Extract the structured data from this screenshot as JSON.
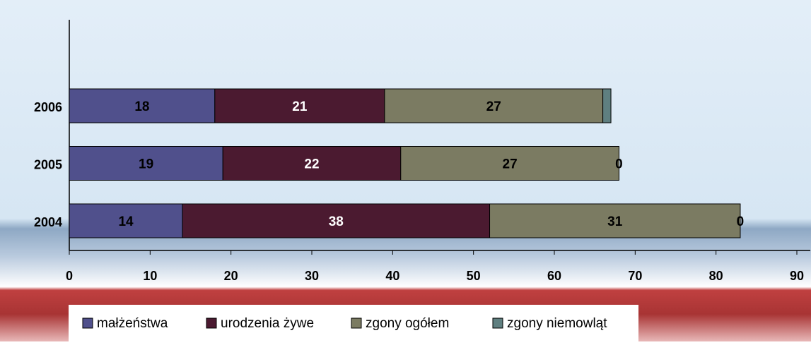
{
  "chart_data": {
    "type": "stacked_barh",
    "categories": [
      "2006",
      "2005",
      "2004"
    ],
    "series": [
      {
        "name": "małżeństwa",
        "color": "#50508c",
        "label_color": "#000000",
        "values": [
          18,
          19,
          14
        ]
      },
      {
        "name": "urodzenia żywe",
        "color": "#4b1a30",
        "label_color": "#ffffff",
        "values": [
          21,
          22,
          38
        ]
      },
      {
        "name": "zgony ogółem",
        "color": "#7b7b62",
        "label_color": "#000000",
        "values": [
          27,
          27,
          31
        ]
      },
      {
        "name": "zgony niemowląt",
        "color": "#5f7f80",
        "label_color": "#000000",
        "values": [
          1,
          0,
          0
        ],
        "value_labels": [
          null,
          "0",
          "0"
        ]
      }
    ],
    "xlim": [
      0,
      90
    ],
    "xticks": [
      0,
      10,
      20,
      30,
      40,
      50,
      60,
      70,
      80,
      90
    ],
    "legend": "bottom"
  }
}
